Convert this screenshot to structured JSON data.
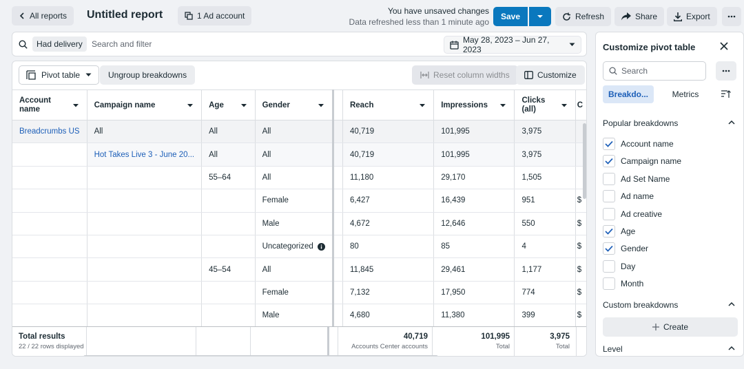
{
  "header": {
    "back_label": "All reports",
    "title": "Untitled report",
    "ad_account_label": "1 Ad account",
    "unsaved_text": "You have unsaved changes",
    "refreshed_text": "Data refreshed less than 1 minute ago",
    "save_label": "Save",
    "refresh_label": "Refresh",
    "share_label": "Share",
    "export_label": "Export"
  },
  "filter": {
    "chip_label": "Had delivery",
    "placeholder": "Search and filter",
    "date_range": "May 28, 2023 – Jun 27, 2023"
  },
  "toolbar": {
    "pivot_label": "Pivot table",
    "ungroup_label": "Ungroup breakdowns",
    "reset_label": "Reset column widths",
    "customize_label": "Customize"
  },
  "table": {
    "columns": [
      "Account name",
      "Campaign name",
      "Age",
      "Gender",
      "Reach",
      "Impressions",
      "Clicks (all)",
      "C"
    ],
    "rows": [
      {
        "account": "Breadcrumbs US",
        "campaign": "All",
        "age": "All",
        "gender": "All",
        "reach": "40,719",
        "impressions": "101,995",
        "clicks": "3,975",
        "extra": ""
      },
      {
        "account": "",
        "campaign": "Hot Takes Live 3 - June 20...",
        "age": "All",
        "gender": "All",
        "reach": "40,719",
        "impressions": "101,995",
        "clicks": "3,975",
        "extra": ""
      },
      {
        "account": "",
        "campaign": "",
        "age": "55–64",
        "gender": "All",
        "reach": "11,180",
        "impressions": "29,170",
        "clicks": "1,505",
        "extra": ""
      },
      {
        "account": "",
        "campaign": "",
        "age": "",
        "gender": "Female",
        "reach": "6,427",
        "impressions": "16,439",
        "clicks": "951",
        "extra": "$"
      },
      {
        "account": "",
        "campaign": "",
        "age": "",
        "gender": "Male",
        "reach": "4,672",
        "impressions": "12,646",
        "clicks": "550",
        "extra": "$"
      },
      {
        "account": "",
        "campaign": "",
        "age": "",
        "gender": "Uncategorized",
        "reach": "80",
        "impressions": "85",
        "clicks": "4",
        "extra": "$"
      },
      {
        "account": "",
        "campaign": "",
        "age": "45–54",
        "gender": "All",
        "reach": "11,845",
        "impressions": "29,461",
        "clicks": "1,177",
        "extra": "$"
      },
      {
        "account": "",
        "campaign": "",
        "age": "",
        "gender": "Female",
        "reach": "7,132",
        "impressions": "17,950",
        "clicks": "774",
        "extra": "$"
      },
      {
        "account": "",
        "campaign": "",
        "age": "",
        "gender": "Male",
        "reach": "4,680",
        "impressions": "11,380",
        "clicks": "399",
        "extra": "$"
      }
    ],
    "totals": {
      "label": "Total results",
      "sub": "22 / 22 rows displayed",
      "reach": "40,719",
      "reach_sub": "Accounts Center accounts",
      "impressions": "101,995",
      "impressions_sub": "Total",
      "clicks": "3,975",
      "clicks_sub": "Total"
    }
  },
  "panel": {
    "title": "Customize pivot table",
    "search_placeholder": "Search",
    "tab_breakdowns": "Breakdo...",
    "tab_metrics": "Metrics",
    "popular_title": "Popular breakdowns",
    "items": [
      {
        "label": "Account name",
        "checked": true
      },
      {
        "label": "Campaign name",
        "checked": true
      },
      {
        "label": "Ad Set Name",
        "checked": false
      },
      {
        "label": "Ad name",
        "checked": false
      },
      {
        "label": "Ad creative",
        "checked": false
      },
      {
        "label": "Age",
        "checked": true
      },
      {
        "label": "Gender",
        "checked": true
      },
      {
        "label": "Day",
        "checked": false
      },
      {
        "label": "Month",
        "checked": false
      }
    ],
    "custom_title": "Custom breakdowns",
    "create_label": "Create",
    "level_title": "Level"
  },
  "colors": {
    "accent": "#0a78be",
    "link": "#1d5fb8"
  }
}
